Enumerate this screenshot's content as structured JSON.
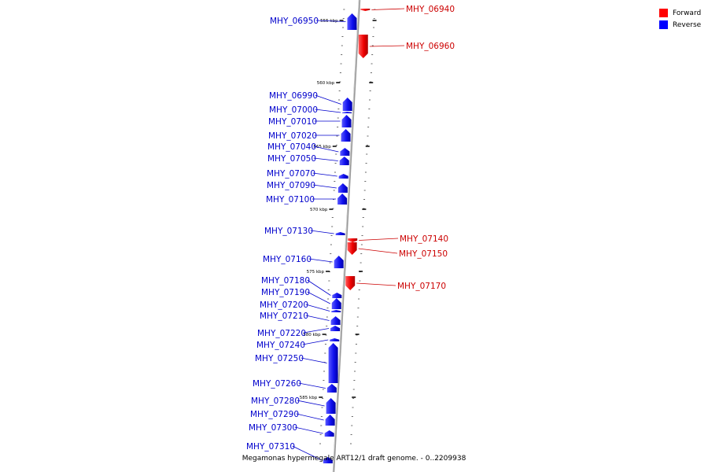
{
  "colors": {
    "forward": "#ff0000",
    "reverse": "#0000ff",
    "backbone": "#999999",
    "label_forward": "#cc0000",
    "label_reverse": "#0000cc"
  },
  "legend": [
    {
      "label": "Forward",
      "color": "#ff0000"
    },
    {
      "label": "Reverse",
      "color": "#0000ff"
    }
  ],
  "caption": "Megamonas hypermegale ART12/1 draft genome. - 0..2209938",
  "scale_labels": [
    "555 kbp",
    "560 kbp",
    "565 kbp",
    "570 kbp",
    "575 kbp",
    "580 kbp",
    "585 kbp"
  ],
  "genes": [
    {
      "name": "MHY_06940",
      "strand": "forward"
    },
    {
      "name": "MHY_06950",
      "strand": "reverse"
    },
    {
      "name": "MHY_06960",
      "strand": "forward"
    },
    {
      "name": "MHY_06990",
      "strand": "reverse"
    },
    {
      "name": "MHY_07000",
      "strand": "reverse"
    },
    {
      "name": "MHY_07010",
      "strand": "reverse"
    },
    {
      "name": "MHY_07020",
      "strand": "reverse"
    },
    {
      "name": "MHY_07040",
      "strand": "reverse"
    },
    {
      "name": "MHY_07050",
      "strand": "reverse"
    },
    {
      "name": "MHY_07070",
      "strand": "reverse"
    },
    {
      "name": "MHY_07090",
      "strand": "reverse"
    },
    {
      "name": "MHY_07100",
      "strand": "reverse"
    },
    {
      "name": "MHY_07130",
      "strand": "reverse"
    },
    {
      "name": "MHY_07140",
      "strand": "forward"
    },
    {
      "name": "MHY_07150",
      "strand": "forward"
    },
    {
      "name": "MHY_07160",
      "strand": "reverse"
    },
    {
      "name": "MHY_07170",
      "strand": "forward"
    },
    {
      "name": "MHY_07180",
      "strand": "reverse"
    },
    {
      "name": "MHY_07190",
      "strand": "reverse"
    },
    {
      "name": "MHY_07200",
      "strand": "reverse"
    },
    {
      "name": "MHY_07210",
      "strand": "reverse"
    },
    {
      "name": "MHY_07220",
      "strand": "reverse"
    },
    {
      "name": "MHY_07240",
      "strand": "reverse"
    },
    {
      "name": "MHY_07250",
      "strand": "reverse"
    },
    {
      "name": "MHY_07260",
      "strand": "reverse"
    },
    {
      "name": "MHY_07280",
      "strand": "reverse"
    },
    {
      "name": "MHY_07290",
      "strand": "reverse"
    },
    {
      "name": "MHY_07300",
      "strand": "reverse"
    },
    {
      "name": "MHY_07310",
      "strand": "reverse"
    }
  ]
}
